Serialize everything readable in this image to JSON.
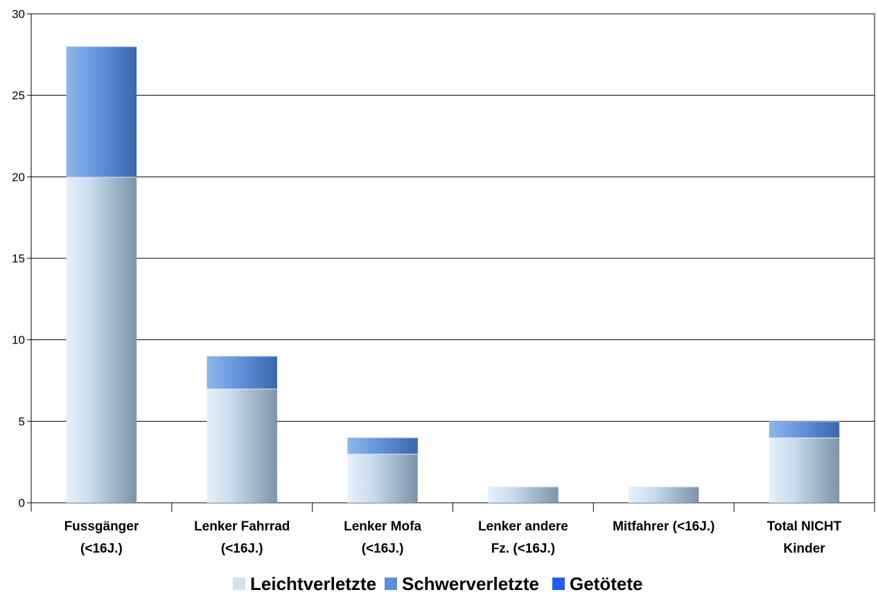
{
  "chart_data": {
    "type": "bar",
    "stacked": true,
    "categories": [
      [
        "Fussgänger",
        "(<16J.)"
      ],
      [
        "Lenker Fahrrad",
        "(<16J.)"
      ],
      [
        "Lenker Mofa",
        "(<16J.)"
      ],
      [
        "Lenker andere",
        "Fz. (<16J.)"
      ],
      [
        "Mitfahrer (<16J.)"
      ],
      [
        "Total NICHT",
        "Kinder"
      ]
    ],
    "series": [
      {
        "name": "Leichtverletzte",
        "values": [
          20,
          7,
          3,
          1,
          1,
          4
        ],
        "color": "#cfe3f5"
      },
      {
        "name": "Schwerverletzte",
        "values": [
          8,
          2,
          1,
          0,
          0,
          1
        ],
        "color": "#5b8fd6"
      },
      {
        "name": "Getötete",
        "values": [
          0,
          0,
          0,
          0,
          0,
          0
        ],
        "color": "#1f5ef0"
      }
    ],
    "ylim": [
      0,
      30
    ],
    "yticks": [
      0,
      5,
      10,
      15,
      20,
      25,
      30
    ],
    "grid": true,
    "legend_position": "bottom"
  }
}
